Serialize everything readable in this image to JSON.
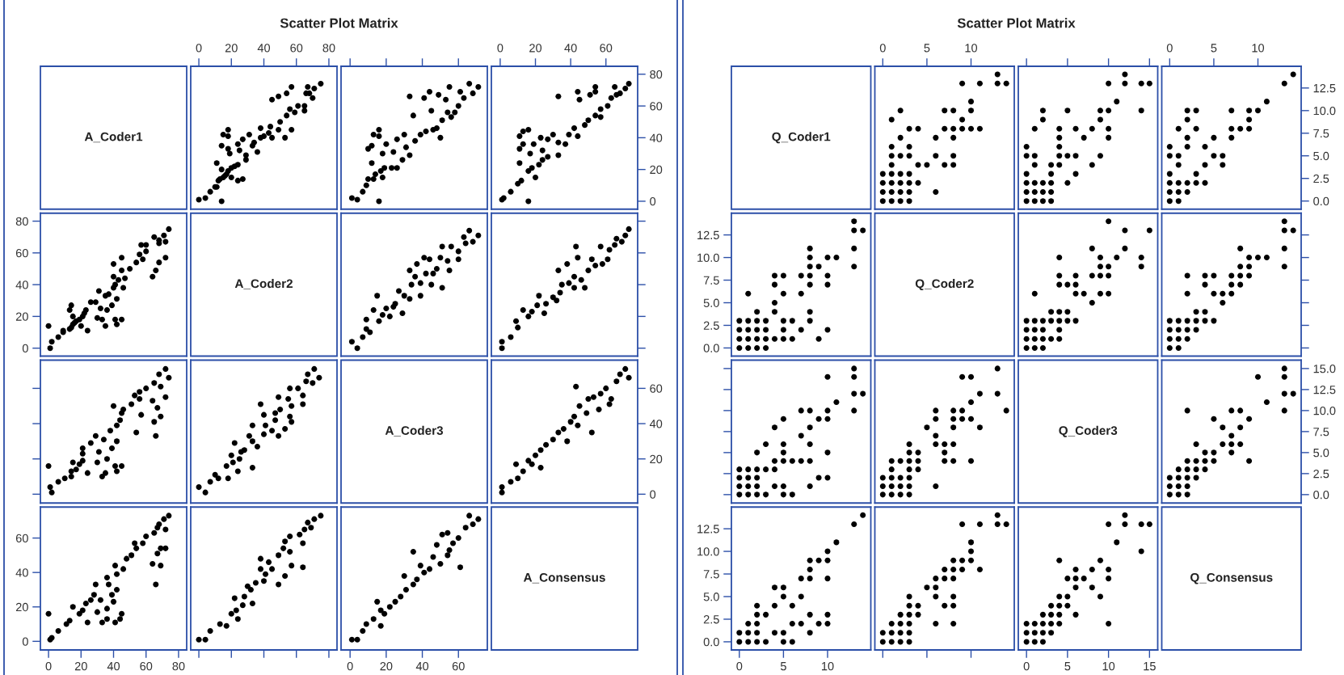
{
  "chart_data": [
    {
      "type": "other",
      "title": "Scatter Plot Matrix"
    },
    {
      "type": "other",
      "annotations": [
        "A_Coder1"
      ]
    },
    {
      "type": "scatter",
      "color": "#000000",
      "marker": "circle",
      "xlim": [
        -5,
        85
      ],
      "ylim": [
        -5,
        85
      ],
      "xticks": [
        0,
        20,
        40,
        60,
        80
      ],
      "yticks": [
        0,
        20,
        40,
        60,
        80
      ],
      "tick_labels": "x",
      "x": [
        0,
        4,
        7,
        10,
        11,
        14,
        11,
        12,
        13,
        15,
        16,
        18,
        20,
        22,
        24,
        20,
        24,
        27,
        14,
        17,
        14,
        15,
        18,
        18,
        18,
        19,
        24,
        25,
        29,
        29,
        27,
        31,
        33,
        34,
        36,
        38,
        38,
        40,
        43,
        44,
        45,
        49,
        50,
        45,
        49,
        53,
        54,
        54,
        57,
        56,
        57,
        59,
        61,
        65,
        65,
        66,
        67,
        68,
        70,
        71,
        75
      ],
      "values": [
        1,
        2,
        6,
        9,
        9,
        0,
        24,
        13,
        14,
        15,
        16,
        19,
        21,
        22,
        23,
        15,
        13,
        14,
        20,
        17,
        35,
        42,
        45,
        41,
        33,
        30,
        36,
        32,
        26,
        29,
        39,
        42,
        35,
        37,
        31,
        46,
        40,
        41,
        43,
        47,
        40,
        45,
        50,
        64,
        66,
        40,
        54,
        68,
        72,
        58,
        45,
        56,
        60,
        60,
        57,
        68,
        72,
        68,
        65,
        71,
        74
      ]
    },
    {
      "type": "scatter",
      "color": "#000000",
      "marker": "circle",
      "xlim": [
        -5,
        76
      ],
      "ylim": [
        -5,
        85
      ],
      "xticks": [
        0,
        20,
        40,
        60
      ],
      "yticks": [
        0,
        20,
        40,
        60,
        80
      ],
      "tick_labels": false,
      "x": [
        1,
        4,
        7,
        9,
        10,
        13,
        16,
        12,
        14,
        17,
        19,
        18,
        23,
        26,
        10,
        12,
        13,
        16,
        16,
        18,
        20,
        24,
        26,
        29,
        30,
        31,
        33,
        35,
        33,
        36,
        39,
        41,
        42,
        44,
        45,
        46,
        48,
        49,
        50,
        51,
        53,
        54,
        56,
        55,
        58,
        60,
        61,
        63,
        66,
        68,
        71
      ],
      "values": [
        2,
        1,
        6,
        10,
        14,
        14,
        0,
        24,
        17,
        19,
        21,
        15,
        21,
        21,
        33,
        35,
        42,
        45,
        41,
        30,
        36,
        31,
        39,
        26,
        42,
        34,
        29,
        54,
        66,
        38,
        42,
        65,
        44,
        69,
        57,
        45,
        46,
        67,
        40,
        51,
        64,
        56,
        53,
        72,
        56,
        60,
        69,
        65,
        74,
        68,
        72
      ]
    },
    {
      "type": "scatter",
      "color": "#000000",
      "marker": "circle",
      "xlim": [
        -5,
        78
      ],
      "ylim": [
        -5,
        85
      ],
      "xticks": [
        0,
        20,
        40,
        60
      ],
      "yticks": [
        0,
        20,
        40,
        60,
        80
      ],
      "x": [
        1,
        2,
        6,
        10,
        11,
        12,
        16,
        16,
        18,
        22,
        24,
        27,
        20,
        17,
        11,
        13,
        11,
        13,
        16,
        19,
        23,
        24,
        27,
        30,
        33,
        33,
        37,
        39,
        42,
        44,
        33,
        44,
        45,
        48,
        50,
        51,
        54,
        54,
        54,
        57,
        57,
        61,
        63,
        65,
        66,
        68,
        71,
        73
      ],
      "values": [
        1,
        2,
        6,
        11,
        24,
        13,
        0,
        19,
        21,
        23,
        26,
        28,
        15,
        30,
        33,
        36,
        41,
        44,
        45,
        36,
        40,
        32,
        39,
        42,
        37,
        29,
        36,
        42,
        46,
        41,
        66,
        69,
        64,
        48,
        51,
        67,
        69,
        72,
        54,
        58,
        53,
        60,
        65,
        72,
        67,
        68,
        71,
        74
      ]
    },
    {
      "type": "scatter",
      "color": "#000000",
      "marker": "circle",
      "xlim": [
        -5,
        85
      ],
      "ylim": [
        -5,
        85
      ],
      "xticks": [
        0,
        20,
        40,
        60,
        80
      ],
      "yticks": [
        0,
        20,
        40,
        60,
        80
      ],
      "tick_labels": "y",
      "x": [
        1,
        2,
        6,
        9,
        9,
        0,
        24,
        13,
        14,
        15,
        16,
        19,
        21,
        22,
        23,
        15,
        13,
        14,
        20,
        17,
        35,
        42,
        45,
        41,
        33,
        30,
        36,
        32,
        26,
        29,
        39,
        42,
        35,
        37,
        31,
        46,
        40,
        41,
        43,
        47,
        40,
        45,
        50,
        64,
        66,
        40,
        54,
        68,
        72,
        58,
        45,
        56,
        60,
        60,
        57,
        68,
        72,
        68,
        65,
        71,
        74
      ],
      "values": [
        0,
        4,
        7,
        10,
        11,
        14,
        11,
        12,
        13,
        15,
        16,
        18,
        20,
        22,
        24,
        20,
        24,
        27,
        14,
        17,
        14,
        15,
        18,
        18,
        18,
        19,
        24,
        25,
        29,
        29,
        27,
        31,
        33,
        34,
        36,
        38,
        38,
        40,
        43,
        44,
        45,
        49,
        50,
        45,
        49,
        53,
        54,
        54,
        57,
        56,
        57,
        59,
        61,
        65,
        65,
        66,
        67,
        68,
        70,
        71,
        75
      ]
    },
    {
      "type": "other",
      "annotations": [
        "A_Coder2"
      ]
    },
    {
      "type": "scatter",
      "color": "#000000",
      "marker": "circle",
      "xlim": [
        -5,
        76
      ],
      "ylim": [
        -5,
        85
      ],
      "xticks": [
        0,
        20,
        40,
        60
      ],
      "yticks": [
        0,
        20,
        40,
        60,
        80
      ],
      "tick_labels": false,
      "x": [
        1,
        4,
        7,
        9,
        11,
        9,
        13,
        15,
        16,
        18,
        20,
        22,
        24,
        25,
        29,
        27,
        30,
        33,
        34,
        33,
        37,
        36,
        39,
        39,
        42,
        41,
        44,
        45,
        46,
        48,
        50,
        51,
        51,
        54,
        55,
        56,
        60,
        60,
        63,
        64,
        66,
        68,
        71
      ],
      "values": [
        4,
        0,
        7,
        12,
        10,
        18,
        24,
        33,
        17,
        21,
        25,
        20,
        26,
        28,
        22,
        36,
        33,
        31,
        40,
        49,
        53,
        45,
        41,
        33,
        47,
        57,
        56,
        40,
        47,
        50,
        57,
        38,
        64,
        55,
        49,
        64,
        56,
        61,
        70,
        66,
        74,
        67,
        71
      ]
    },
    {
      "type": "scatter",
      "color": "#000000",
      "marker": "circle",
      "xlim": [
        -5,
        78
      ],
      "ylim": [
        -5,
        85
      ],
      "xticks": [
        0,
        20,
        40,
        60
      ],
      "yticks": [
        0,
        20,
        40,
        60,
        80
      ],
      "tick_labels": false,
      "x": [
        1,
        1,
        6,
        10,
        9,
        13,
        16,
        18,
        21,
        22,
        25,
        26,
        30,
        32,
        33,
        34,
        35,
        38,
        39,
        42,
        42,
        43,
        44,
        46,
        48,
        50,
        52,
        54,
        57,
        58,
        61,
        62,
        65,
        66,
        69,
        71,
        73
      ],
      "values": [
        4,
        0,
        7,
        13,
        17,
        24,
        20,
        23,
        27,
        33,
        22,
        28,
        32,
        30,
        49,
        35,
        40,
        53,
        41,
        38,
        45,
        64,
        57,
        43,
        38,
        49,
        56,
        52,
        64,
        53,
        56,
        62,
        65,
        69,
        67,
        71,
        75
      ]
    },
    {
      "type": "scatter",
      "color": "#000000",
      "marker": "circle",
      "xlim": [
        -5,
        85
      ],
      "ylim": [
        -5,
        76
      ],
      "xticks": [
        0,
        20,
        40,
        60,
        80
      ],
      "yticks": [
        0,
        20,
        40,
        60
      ],
      "tick_labels": false,
      "x": [
        2,
        1,
        6,
        10,
        14,
        14,
        0,
        24,
        17,
        19,
        21,
        15,
        21,
        21,
        33,
        35,
        42,
        45,
        41,
        30,
        36,
        31,
        39,
        26,
        42,
        34,
        29,
        54,
        66,
        38,
        42,
        65,
        44,
        69,
        57,
        45,
        46,
        67,
        40,
        51,
        64,
        56,
        53,
        72,
        56,
        60,
        69,
        65,
        74,
        68,
        72
      ],
      "values": [
        1,
        4,
        7,
        9,
        10,
        13,
        16,
        12,
        14,
        17,
        19,
        18,
        23,
        26,
        10,
        12,
        13,
        16,
        16,
        18,
        20,
        24,
        26,
        29,
        30,
        31,
        33,
        35,
        33,
        36,
        39,
        41,
        42,
        44,
        45,
        46,
        48,
        49,
        50,
        51,
        53,
        54,
        56,
        55,
        58,
        60,
        61,
        63,
        66,
        68,
        71
      ]
    },
    {
      "type": "scatter",
      "color": "#000000",
      "marker": "circle",
      "xlim": [
        -5,
        85
      ],
      "ylim": [
        -5,
        76
      ],
      "xticks": [
        0,
        20,
        40,
        60,
        80
      ],
      "yticks": [
        0,
        20,
        40,
        60
      ],
      "tick_labels": false,
      "x": [
        4,
        0,
        7,
        12,
        10,
        18,
        24,
        33,
        17,
        21,
        25,
        20,
        26,
        28,
        22,
        36,
        33,
        31,
        40,
        49,
        53,
        45,
        41,
        33,
        47,
        57,
        56,
        40,
        47,
        50,
        57,
        38,
        64,
        55,
        49,
        64,
        56,
        61,
        70,
        66,
        74,
        67,
        71
      ],
      "values": [
        1,
        4,
        7,
        9,
        11,
        9,
        13,
        15,
        16,
        18,
        20,
        22,
        24,
        25,
        29,
        27,
        30,
        33,
        34,
        33,
        37,
        36,
        39,
        39,
        42,
        41,
        44,
        45,
        46,
        48,
        50,
        51,
        51,
        54,
        55,
        56,
        60,
        60,
        63,
        64,
        66,
        68,
        71
      ]
    },
    {
      "type": "other",
      "annotations": [
        "A_Coder3"
      ]
    },
    {
      "type": "scatter",
      "color": "#000000",
      "marker": "circle",
      "xlim": [
        -5,
        78
      ],
      "ylim": [
        -5,
        76
      ],
      "xticks": [
        0,
        20,
        40,
        60
      ],
      "yticks": [
        0,
        20,
        40,
        60
      ],
      "tick_labels": "y",
      "x": [
        1,
        1,
        6,
        9,
        10,
        13,
        16,
        18,
        20,
        23,
        23,
        26,
        30,
        33,
        36,
        38,
        40,
        42,
        43,
        44,
        45,
        49,
        50,
        52,
        53,
        56,
        57,
        60,
        62,
        63,
        66,
        68,
        71,
        73
      ],
      "values": [
        4,
        1,
        7,
        17,
        9,
        13,
        19,
        17,
        22,
        15,
        25,
        28,
        31,
        35,
        37,
        30,
        41,
        44,
        61,
        39,
        50,
        46,
        54,
        35,
        55,
        48,
        57,
        60,
        51,
        54,
        64,
        68,
        71,
        66
      ]
    },
    {
      "type": "scatter",
      "color": "#000000",
      "marker": "circle",
      "xlim": [
        -5,
        85
      ],
      "ylim": [
        -5,
        78
      ],
      "xticks": [
        0,
        20,
        40,
        60,
        80
      ],
      "yticks": [
        0,
        20,
        40,
        60
      ],
      "x": [
        1,
        2,
        6,
        11,
        24,
        13,
        0,
        19,
        21,
        23,
        26,
        28,
        15,
        30,
        33,
        36,
        41,
        44,
        45,
        36,
        40,
        32,
        39,
        42,
        37,
        29,
        36,
        42,
        46,
        41,
        66,
        69,
        64,
        48,
        51,
        67,
        69,
        72,
        54,
        58,
        53,
        60,
        65,
        72,
        67,
        68,
        71,
        74
      ],
      "values": [
        1,
        2,
        6,
        10,
        11,
        12,
        16,
        16,
        18,
        22,
        24,
        27,
        20,
        17,
        11,
        13,
        11,
        13,
        16,
        19,
        23,
        24,
        27,
        30,
        33,
        33,
        37,
        39,
        42,
        44,
        33,
        44,
        45,
        48,
        50,
        51,
        54,
        54,
        54,
        57,
        57,
        61,
        63,
        65,
        66,
        68,
        71,
        73
      ]
    },
    {
      "type": "scatter",
      "color": "#000000",
      "marker": "circle",
      "xlim": [
        -5,
        85
      ],
      "ylim": [
        -5,
        78
      ],
      "xticks": [
        0,
        20,
        40,
        60,
        80
      ],
      "yticks": [
        0,
        20,
        40,
        60
      ],
      "tick_labels": false,
      "x": [
        4,
        0,
        7,
        13,
        17,
        24,
        20,
        23,
        27,
        33,
        22,
        28,
        32,
        30,
        49,
        35,
        40,
        53,
        41,
        38,
        45,
        64,
        57,
        43,
        38,
        49,
        56,
        52,
        64,
        53,
        56,
        62,
        65,
        69,
        67,
        71,
        75
      ],
      "values": [
        1,
        1,
        6,
        10,
        9,
        13,
        16,
        18,
        21,
        22,
        25,
        26,
        30,
        32,
        33,
        34,
        35,
        38,
        39,
        42,
        42,
        43,
        44,
        46,
        48,
        50,
        52,
        54,
        57,
        58,
        61,
        62,
        65,
        66,
        69,
        71,
        73
      ]
    },
    {
      "type": "scatter",
      "color": "#000000",
      "marker": "circle",
      "xlim": [
        -5,
        76
      ],
      "ylim": [
        -5,
        78
      ],
      "xticks": [
        0,
        20,
        40,
        60
      ],
      "yticks": [
        0,
        20,
        40,
        60
      ],
      "tick_labels": "x",
      "x": [
        4,
        1,
        7,
        17,
        9,
        13,
        19,
        17,
        22,
        15,
        25,
        28,
        31,
        35,
        37,
        30,
        41,
        44,
        61,
        39,
        50,
        46,
        54,
        35,
        55,
        48,
        57,
        60,
        51,
        54,
        64,
        68,
        71,
        66
      ],
      "values": [
        1,
        1,
        6,
        9,
        10,
        13,
        16,
        18,
        20,
        23,
        23,
        26,
        30,
        33,
        36,
        38,
        40,
        42,
        43,
        44,
        45,
        49,
        50,
        52,
        53,
        56,
        57,
        60,
        62,
        63,
        66,
        68,
        71,
        73
      ]
    },
    {
      "type": "other",
      "annotations": [
        "A_Consensus"
      ]
    },
    {
      "type": "other",
      "title": "Scatter Plot Matrix"
    },
    {
      "type": "other",
      "annotations": [
        "Q_Coder1"
      ]
    },
    {
      "type": "scatter",
      "color": "#000000",
      "marker": "circle",
      "xlim": [
        -0.9,
        14.9
      ],
      "ylim": [
        -0.9,
        14.9
      ],
      "xticks": [
        0,
        5,
        10
      ],
      "yticks": [
        0,
        2.5,
        5,
        7.5,
        10,
        12.5
      ],
      "tick_labels": "x",
      "x": [
        13,
        9,
        11,
        13,
        14,
        10,
        2,
        7,
        8,
        10,
        1,
        9,
        3,
        4,
        7,
        8,
        9,
        10,
        11,
        2,
        6,
        8,
        1,
        3,
        1,
        2,
        3,
        6,
        8,
        1,
        4,
        5,
        7,
        8,
        0,
        1,
        2,
        3,
        0,
        1,
        2,
        3,
        4,
        0,
        1,
        2,
        3,
        6,
        0,
        1,
        2,
        3
      ],
      "values": [
        14,
        13,
        13,
        13,
        13,
        11,
        10,
        10,
        10,
        10,
        9,
        9,
        8,
        8,
        8,
        8,
        8,
        8,
        8,
        7,
        7,
        7,
        6,
        6,
        5,
        5,
        5,
        5,
        5,
        4,
        4,
        4,
        4,
        4,
        3,
        3,
        3,
        3,
        2,
        2,
        2,
        2,
        2,
        1,
        1,
        1,
        1,
        1,
        0,
        0,
        0,
        0
      ]
    },
    {
      "type": "scatter",
      "color": "#000000",
      "marker": "circle",
      "xlim": [
        -1,
        16
      ],
      "ylim": [
        -0.9,
        14.9
      ],
      "xticks": [
        0,
        5,
        10,
        15
      ],
      "yticks": [
        0,
        2.5,
        5,
        7.5,
        10,
        12.5
      ],
      "tick_labels": false,
      "x": [
        12,
        10,
        12,
        14,
        15,
        11,
        2,
        5,
        9,
        10,
        14,
        2,
        9,
        1,
        4,
        6,
        8,
        10,
        4,
        7,
        10,
        0,
        4,
        0,
        1,
        4,
        5,
        6,
        9,
        1,
        3,
        4,
        8,
        0,
        3,
        6,
        0,
        1,
        2,
        3,
        5,
        0,
        1,
        2,
        3,
        0,
        1,
        2,
        3
      ],
      "values": [
        14,
        13,
        13,
        13,
        13,
        11,
        10,
        10,
        10,
        10,
        10,
        9,
        9,
        8,
        8,
        8,
        8,
        8,
        7,
        7,
        7,
        6,
        6,
        5,
        5,
        5,
        5,
        5,
        5,
        4,
        4,
        4,
        4,
        3,
        3,
        3,
        2,
        2,
        2,
        2,
        2,
        1,
        1,
        1,
        1,
        0,
        0,
        0,
        0
      ]
    },
    {
      "type": "scatter",
      "color": "#000000",
      "marker": "circle",
      "xlim": [
        -0.9,
        14.9
      ],
      "ylim": [
        -0.9,
        14.9
      ],
      "xticks": [
        0,
        5,
        10
      ],
      "yticks": [
        {
          "value": 0,
          "label": "0.0"
        },
        2.5,
        {
          "value": 5,
          "label": "5.0"
        },
        7.5,
        {
          "value": 10,
          "label": "10.0"
        },
        12.5
      ],
      "x": [
        14,
        13,
        11,
        2,
        3,
        7,
        9,
        10,
        2,
        9,
        1,
        3,
        7,
        8,
        9,
        2,
        5,
        7,
        0,
        2,
        4,
        0,
        1,
        5,
        6,
        1,
        4,
        6,
        0,
        3,
        0,
        1,
        2,
        3,
        4,
        0,
        1,
        2,
        0,
        1
      ],
      "values": [
        14,
        13,
        11,
        10,
        10,
        10,
        10,
        10,
        9,
        9,
        8,
        8,
        8,
        8,
        8,
        7,
        7,
        7,
        6,
        6,
        6,
        5,
        5,
        5,
        5,
        4,
        4,
        4,
        3,
        3,
        2,
        2,
        2,
        2,
        2,
        1,
        1,
        1,
        0,
        0
      ]
    },
    {
      "type": "scatter",
      "color": "#000000",
      "marker": "circle",
      "xlim": [
        -0.9,
        14.9
      ],
      "ylim": [
        -0.9,
        14.9
      ],
      "xticks": [
        0,
        5,
        10
      ],
      "yticks": [
        {
          "value": 0,
          "label": "0.0"
        },
        2.5,
        {
          "value": 5,
          "label": "5.0"
        },
        7.5,
        {
          "value": 10,
          "label": "10.0"
        },
        12.5
      ],
      "tick_labels": "y",
      "x": [
        14,
        13,
        13,
        13,
        13,
        11,
        10,
        10,
        10,
        10,
        9,
        9,
        8,
        8,
        8,
        8,
        8,
        8,
        8,
        7,
        7,
        7,
        6,
        6,
        5,
        5,
        5,
        5,
        5,
        4,
        4,
        4,
        4,
        4,
        3,
        3,
        3,
        3,
        2,
        2,
        2,
        2,
        2,
        1,
        1,
        1,
        1,
        1,
        0,
        0,
        0,
        0
      ],
      "values": [
        13,
        9,
        11,
        13,
        14,
        10,
        2,
        7,
        8,
        10,
        1,
        9,
        3,
        4,
        7,
        8,
        9,
        10,
        11,
        2,
        6,
        8,
        1,
        3,
        1,
        2,
        3,
        6,
        8,
        1,
        4,
        5,
        7,
        8,
        0,
        1,
        2,
        3,
        0,
        1,
        2,
        3,
        4,
        0,
        1,
        2,
        3,
        6,
        0,
        1,
        2,
        3
      ]
    },
    {
      "type": "other",
      "annotations": [
        "Q_Coder2"
      ]
    },
    {
      "type": "scatter",
      "color": "#000000",
      "marker": "circle",
      "xlim": [
        -1,
        16
      ],
      "ylim": [
        -0.9,
        14.9
      ],
      "xticks": [
        0,
        5,
        10,
        15
      ],
      "yticks": [
        0,
        2.5,
        5,
        7.5,
        10,
        12.5
      ],
      "tick_labels": false,
      "x": [
        10,
        12,
        15,
        8,
        12,
        4,
        9,
        11,
        14,
        9,
        10,
        14,
        4,
        6,
        8,
        9,
        10,
        4,
        5,
        6,
        1,
        6,
        7,
        9,
        10,
        8,
        3,
        4,
        5,
        0,
        1,
        2,
        3,
        4,
        5,
        6,
        0,
        1,
        2,
        4,
        0,
        1,
        2,
        3,
        4,
        0,
        1,
        2
      ],
      "values": [
        14,
        13,
        13,
        11,
        11,
        10,
        10,
        10,
        10,
        9,
        9,
        9,
        8,
        8,
        8,
        8,
        8,
        7,
        7,
        7,
        6,
        6,
        6,
        6,
        6,
        5,
        4,
        4,
        4,
        3,
        3,
        3,
        3,
        3,
        3,
        3,
        2,
        2,
        2,
        2,
        1,
        1,
        1,
        1,
        1,
        0,
        0,
        0
      ]
    },
    {
      "type": "scatter",
      "color": "#000000",
      "marker": "circle",
      "xlim": [
        -0.9,
        14.9
      ],
      "ylim": [
        -0.9,
        14.9
      ],
      "xticks": [
        0,
        5,
        10
      ],
      "yticks": [
        0,
        2.5,
        5,
        7.5,
        10,
        12.5
      ],
      "tick_labels": false,
      "x": [
        13,
        13,
        14,
        8,
        13,
        9,
        10,
        11,
        8,
        9,
        13,
        2,
        4,
        5,
        7,
        8,
        9,
        4,
        7,
        8,
        2,
        5,
        6,
        7,
        6,
        3,
        4,
        0,
        1,
        2,
        3,
        4,
        5,
        0,
        1,
        2,
        3,
        0,
        1,
        2,
        0,
        1
      ],
      "values": [
        14,
        13,
        13,
        11,
        11,
        10,
        10,
        10,
        9,
        9,
        9,
        8,
        8,
        8,
        8,
        8,
        8,
        7,
        7,
        7,
        6,
        6,
        6,
        6,
        5,
        4,
        4,
        3,
        3,
        3,
        3,
        3,
        3,
        2,
        2,
        2,
        2,
        1,
        1,
        1,
        0,
        0
      ]
    },
    {
      "type": "scatter",
      "color": "#000000",
      "marker": "circle",
      "xlim": [
        -0.9,
        14.9
      ],
      "ylim": [
        -1,
        16
      ],
      "xticks": [
        0,
        5,
        10
      ],
      "yticks": [
        0,
        2.5,
        5,
        7.5,
        10,
        12.5,
        15
      ],
      "tick_labels": false,
      "x": [
        14,
        13,
        13,
        13,
        13,
        11,
        10,
        10,
        10,
        10,
        10,
        9,
        9,
        8,
        8,
        8,
        8,
        8,
        7,
        7,
        7,
        6,
        6,
        5,
        5,
        5,
        5,
        5,
        5,
        4,
        4,
        4,
        4,
        3,
        3,
        3,
        2,
        2,
        2,
        2,
        2,
        1,
        1,
        1,
        1,
        0,
        0,
        0,
        0
      ],
      "values": [
        12,
        10,
        12,
        14,
        15,
        11,
        2,
        5,
        9,
        10,
        14,
        2,
        9,
        1,
        4,
        6,
        8,
        10,
        4,
        7,
        10,
        0,
        4,
        0,
        1,
        4,
        5,
        6,
        9,
        1,
        3,
        4,
        8,
        0,
        3,
        6,
        0,
        1,
        2,
        3,
        5,
        0,
        1,
        2,
        3,
        0,
        1,
        2,
        3
      ]
    },
    {
      "type": "scatter",
      "color": "#000000",
      "marker": "circle",
      "xlim": [
        -0.9,
        14.9
      ],
      "ylim": [
        -1,
        16
      ],
      "xticks": [
        0,
        5,
        10
      ],
      "yticks": [
        0,
        2.5,
        5,
        7.5,
        10,
        12.5,
        15
      ],
      "tick_labels": false,
      "x": [
        14,
        13,
        13,
        11,
        11,
        10,
        10,
        10,
        10,
        9,
        9,
        9,
        8,
        8,
        8,
        8,
        8,
        7,
        7,
        7,
        6,
        6,
        6,
        6,
        6,
        5,
        4,
        4,
        4,
        3,
        3,
        3,
        3,
        3,
        3,
        3,
        2,
        2,
        2,
        2,
        1,
        1,
        1,
        1,
        1,
        0,
        0,
        0
      ],
      "values": [
        10,
        12,
        15,
        8,
        12,
        4,
        9,
        11,
        14,
        9,
        10,
        14,
        4,
        6,
        8,
        9,
        10,
        4,
        5,
        6,
        1,
        6,
        7,
        9,
        10,
        8,
        3,
        4,
        5,
        0,
        1,
        2,
        3,
        4,
        5,
        6,
        0,
        1,
        2,
        4,
        0,
        1,
        2,
        3,
        4,
        0,
        1,
        2
      ]
    },
    {
      "type": "other",
      "annotations": [
        "Q_Coder3"
      ]
    },
    {
      "type": "scatter",
      "color": "#000000",
      "marker": "circle",
      "xlim": [
        -0.9,
        14.9
      ],
      "ylim": [
        -1,
        16
      ],
      "xticks": [
        0,
        5,
        10
      ],
      "yticks": [
        {
          "value": 0,
          "label": "0.0"
        },
        2.5,
        {
          "value": 5,
          "label": "5.0"
        },
        7.5,
        {
          "value": 10,
          "label": "10.0"
        },
        12.5,
        {
          "value": 15,
          "label": "15.0"
        }
      ],
      "tick_labels": "y",
      "x": [
        13,
        10,
        13,
        13,
        14,
        11,
        2,
        7,
        8,
        13,
        5,
        9,
        6,
        8,
        7,
        3,
        6,
        7,
        8,
        4,
        5,
        7,
        2,
        3,
        4,
        5,
        9,
        1,
        2,
        3,
        4,
        0,
        1,
        2,
        3,
        0,
        1,
        2,
        0,
        1,
        2
      ],
      "values": [
        15,
        14,
        14,
        12,
        12,
        11,
        10,
        10,
        10,
        10,
        9,
        9,
        8,
        8,
        7,
        6,
        6,
        6,
        6,
        5,
        5,
        5,
        4,
        4,
        4,
        4,
        4,
        3,
        3,
        3,
        3,
        2,
        2,
        2,
        2,
        1,
        1,
        1,
        0,
        0,
        0
      ]
    },
    {
      "type": "scatter",
      "color": "#000000",
      "marker": "circle",
      "xlim": [
        -0.9,
        14.9
      ],
      "ylim": [
        -0.9,
        14.9
      ],
      "xticks": [
        0,
        5,
        10
      ],
      "yticks": [
        {
          "value": 0,
          "label": "0.0"
        },
        2.5,
        {
          "value": 5,
          "label": "5.0"
        },
        7.5,
        {
          "value": 10,
          "label": "10.0"
        },
        12.5
      ],
      "x": [
        14,
        13,
        11,
        10,
        10,
        10,
        10,
        10,
        9,
        9,
        8,
        8,
        8,
        8,
        8,
        7,
        7,
        7,
        6,
        6,
        6,
        5,
        5,
        5,
        5,
        4,
        4,
        4,
        3,
        3,
        2,
        2,
        2,
        2,
        2,
        1,
        1,
        1,
        0,
        0
      ],
      "values": [
        14,
        13,
        11,
        2,
        3,
        7,
        9,
        10,
        2,
        9,
        1,
        3,
        7,
        8,
        9,
        2,
        5,
        7,
        0,
        2,
        4,
        0,
        1,
        5,
        6,
        1,
        4,
        6,
        0,
        3,
        0,
        1,
        2,
        3,
        4,
        0,
        1,
        2,
        0,
        1
      ]
    },
    {
      "type": "scatter",
      "color": "#000000",
      "marker": "circle",
      "xlim": [
        -0.9,
        14.9
      ],
      "ylim": [
        -0.9,
        14.9
      ],
      "xticks": [
        0,
        5,
        10
      ],
      "yticks": [
        0,
        2.5,
        5,
        7.5,
        10,
        12.5
      ],
      "tick_labels": false,
      "x": [
        14,
        13,
        13,
        11,
        11,
        10,
        10,
        10,
        9,
        9,
        9,
        8,
        8,
        8,
        8,
        8,
        8,
        7,
        7,
        7,
        6,
        6,
        6,
        6,
        5,
        4,
        4,
        3,
        3,
        3,
        3,
        3,
        3,
        2,
        2,
        2,
        2,
        1,
        1,
        1,
        0,
        0
      ],
      "values": [
        13,
        13,
        14,
        8,
        13,
        9,
        10,
        11,
        8,
        9,
        13,
        2,
        4,
        5,
        7,
        8,
        9,
        4,
        7,
        8,
        2,
        5,
        6,
        7,
        6,
        3,
        4,
        0,
        1,
        2,
        3,
        4,
        5,
        0,
        1,
        2,
        3,
        0,
        1,
        2,
        0,
        1
      ]
    },
    {
      "type": "scatter",
      "color": "#000000",
      "marker": "circle",
      "xlim": [
        -1,
        16
      ],
      "ylim": [
        -0.9,
        14.9
      ],
      "xticks": [
        0,
        5,
        10,
        15
      ],
      "yticks": [
        0,
        2.5,
        5,
        7.5,
        10,
        12.5
      ],
      "tick_labels": "x",
      "x": [
        15,
        14,
        14,
        12,
        12,
        11,
        10,
        10,
        10,
        10,
        9,
        9,
        8,
        8,
        7,
        6,
        6,
        6,
        6,
        5,
        5,
        5,
        4,
        4,
        4,
        4,
        4,
        3,
        3,
        3,
        3,
        2,
        2,
        2,
        2,
        1,
        1,
        1,
        0,
        0,
        0
      ],
      "values": [
        13,
        10,
        13,
        13,
        14,
        11,
        2,
        7,
        8,
        13,
        5,
        9,
        6,
        8,
        7,
        3,
        6,
        7,
        8,
        4,
        5,
        7,
        2,
        3,
        4,
        5,
        9,
        1,
        2,
        3,
        4,
        0,
        1,
        2,
        3,
        0,
        1,
        2,
        0,
        1,
        2
      ]
    },
    {
      "type": "other",
      "annotations": [
        "Q_Consensus"
      ]
    }
  ]
}
